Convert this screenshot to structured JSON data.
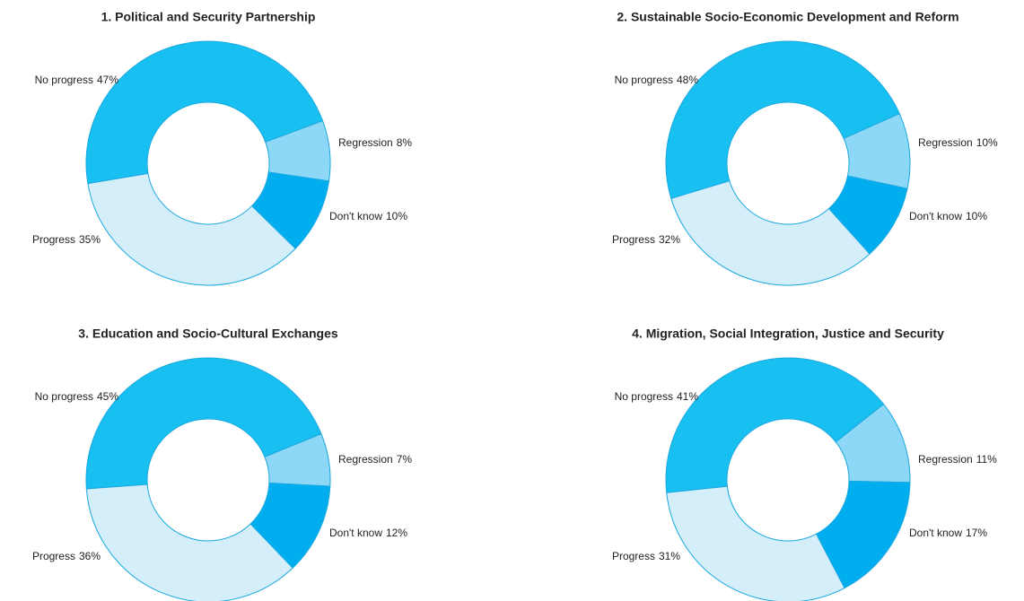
{
  "chart_data": [
    {
      "type": "donut",
      "title": "1. Political and Security Partnership",
      "categories": [
        "No progress",
        "Regression",
        "Don't know",
        "Progress"
      ],
      "values": [
        47,
        8,
        10,
        35
      ],
      "value_labels": [
        "47%",
        "8%",
        "10%",
        "35%"
      ],
      "colors": [
        "#17c0f0",
        "#8dd8f6",
        "#00aeef",
        "#d4eefa"
      ]
    },
    {
      "type": "donut",
      "title": "2. Sustainable Socio-Economic Development and Reform",
      "categories": [
        "No progress",
        "Regression",
        "Don't know",
        "Progress"
      ],
      "values": [
        48,
        10,
        10,
        32
      ],
      "value_labels": [
        "48%",
        "10%",
        "10%",
        "32%"
      ],
      "colors": [
        "#17c0f0",
        "#8dd8f6",
        "#00aeef",
        "#d4eefa"
      ]
    },
    {
      "type": "donut",
      "title": "3. Education and Socio-Cultural Exchanges",
      "categories": [
        "No progress",
        "Regression",
        "Don't know",
        "Progress"
      ],
      "values": [
        45,
        7,
        12,
        36
      ],
      "value_labels": [
        "45%",
        "7%",
        "12%",
        "36%"
      ],
      "colors": [
        "#17c0f0",
        "#8dd8f6",
        "#00aeef",
        "#d4eefa"
      ]
    },
    {
      "type": "donut",
      "title": "4. Migration, Social Integration, Justice and Security",
      "categories": [
        "No progress",
        "Regression",
        "Don't know",
        "Progress"
      ],
      "values": [
        41,
        11,
        17,
        31
      ],
      "value_labels": [
        "41%",
        "11%",
        "17%",
        "31%"
      ],
      "colors": [
        "#17c0f0",
        "#8dd8f6",
        "#00aeef",
        "#d4eefa"
      ]
    }
  ]
}
